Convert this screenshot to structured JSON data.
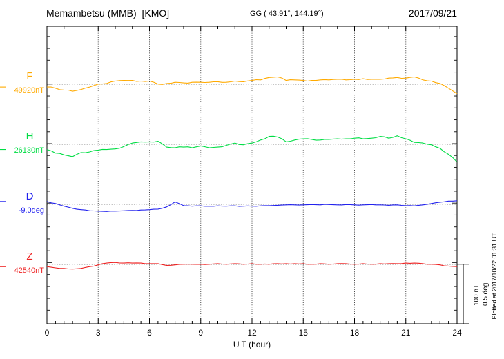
{
  "header": {
    "station_title": "Memambetsu (MMB)  [KMO]",
    "coordinates": "GG ( 43.91°, 144.19°)",
    "date": "2017/09/21"
  },
  "x_axis": {
    "label": "U T (hour)",
    "tick_labels": [
      "0",
      "3",
      "6",
      "9",
      "12",
      "15",
      "18",
      "21",
      "24"
    ]
  },
  "scale_bar": {
    "line1": "100 nT",
    "line2": "0.5 deg"
  },
  "footer_note": "Plotted at 2017/10/22 01:31 UT",
  "chart_data": {
    "type": "line",
    "title": "Memambetsu (MMB) [KMO] geomagnetic field components, 2017/09/21",
    "xlabel": "U T (hour)",
    "x_unit": "hour UT",
    "x_range_hours": [
      0,
      24
    ],
    "x_tick_labels": [
      "0",
      "3",
      "6",
      "9",
      "12",
      "15",
      "18",
      "21",
      "24"
    ],
    "sample_step_hours": 0.5,
    "grid": {
      "vertical_dotted_every_hours": 3,
      "horizontal_dotted_baseline_per_series": true
    },
    "scale_reference": {
      "nT_per_bar": 100,
      "deg_per_bar": 0.5
    },
    "series": [
      {
        "name": "F",
        "label": "F",
        "value_label": "49920nT",
        "baseline_value": 49920,
        "unit": "nT",
        "color": "#FFAA00",
        "offsets": [
          -5,
          -7,
          -10,
          -12,
          -9,
          -5,
          0,
          1,
          5,
          6,
          6,
          5,
          5,
          0,
          1,
          3,
          2,
          3,
          3,
          3,
          4,
          3,
          5,
          4,
          6,
          7,
          11,
          12,
          6,
          7,
          6,
          6,
          7,
          7,
          8,
          7,
          8,
          9,
          8,
          8,
          10,
          11,
          10,
          12,
          7,
          5,
          1,
          -7,
          -16
        ]
      },
      {
        "name": "H",
        "label": "H",
        "value_label": "26130nT",
        "baseline_value": 26130,
        "unit": "nT",
        "color": "#00DD44",
        "offsets": [
          -9,
          -15,
          -18,
          -21,
          -14,
          -13,
          -10,
          -9,
          -8,
          -4,
          2,
          4,
          4,
          5,
          -5,
          -6,
          -5,
          -6,
          -3,
          -6,
          -5,
          -2,
          2,
          -1,
          2,
          7,
          13,
          12,
          4,
          7,
          9,
          8,
          7,
          8,
          9,
          9,
          10,
          9,
          10,
          13,
          10,
          14,
          9,
          3,
          2,
          -1,
          -7,
          -17,
          -30
        ]
      },
      {
        "name": "D",
        "label": "D",
        "value_label": "-9.0deg",
        "baseline_value": -9.0,
        "unit": "deg",
        "color": "#2222EE",
        "offsets": [
          0.023,
          0.006,
          -0.017,
          -0.035,
          -0.046,
          -0.055,
          -0.058,
          -0.061,
          -0.058,
          -0.055,
          -0.052,
          -0.049,
          -0.046,
          -0.041,
          -0.023,
          0.02,
          -0.012,
          -0.017,
          -0.014,
          -0.017,
          -0.014,
          -0.017,
          -0.014,
          -0.017,
          -0.017,
          -0.014,
          -0.012,
          -0.009,
          -0.006,
          -0.006,
          -0.006,
          -0.003,
          -0.006,
          -0.003,
          -0.006,
          -0.003,
          -0.006,
          -0.006,
          -0.003,
          -0.006,
          -0.009,
          -0.006,
          -0.012,
          -0.014,
          -0.006,
          0.006,
          0.017,
          0.026,
          0.029
        ]
      },
      {
        "name": "Z",
        "label": "Z",
        "value_label": "42540nT",
        "baseline_value": 42540,
        "unit": "nT",
        "color": "#EE2222",
        "offsets": [
          -4,
          -6,
          -7,
          -8,
          -7,
          -4,
          -1,
          2,
          3,
          2,
          2,
          2,
          1,
          1,
          -2,
          -1,
          0,
          0,
          0,
          0,
          1,
          0,
          1,
          0,
          1,
          0,
          0,
          1,
          1,
          1,
          1,
          0,
          1,
          0,
          1,
          1,
          0,
          1,
          0,
          1,
          1,
          1,
          2,
          2,
          1,
          0,
          -1,
          -3,
          -4
        ]
      }
    ]
  }
}
